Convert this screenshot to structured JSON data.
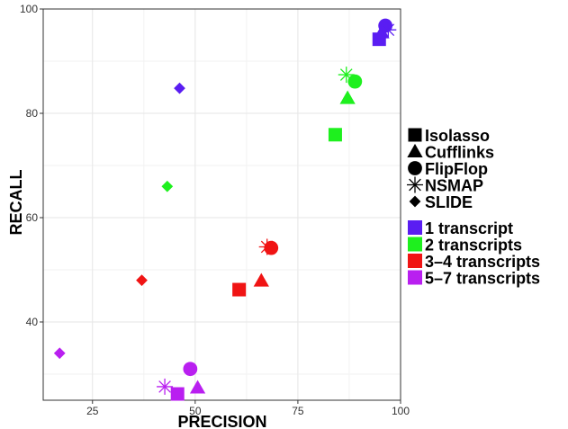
{
  "chart_data": {
    "type": "scatter",
    "xlabel": "PRECISION",
    "ylabel": "RECALL",
    "xlim": [
      13,
      100
    ],
    "ylim": [
      25,
      100
    ],
    "x_ticks": [
      25,
      50,
      75,
      100
    ],
    "y_ticks": [
      40,
      60,
      80,
      100
    ],
    "grid": true,
    "legend_position": "right",
    "shape_legend": [
      {
        "label": "Isolasso",
        "shape": "square"
      },
      {
        "label": "Cufflinks",
        "shape": "triangle"
      },
      {
        "label": "FlipFlop",
        "shape": "circle"
      },
      {
        "label": "NSMAP",
        "shape": "asterisk"
      },
      {
        "label": "SLIDE",
        "shape": "diamond"
      }
    ],
    "color_legend": [
      {
        "label": "1 transcript",
        "color": "#5a1df2"
      },
      {
        "label": "2 transcripts",
        "color": "#1ef01e"
      },
      {
        "label": "3–4 transcripts",
        "color": "#f01414"
      },
      {
        "label": "5–7 transcripts",
        "color": "#b91ff0"
      }
    ],
    "points": [
      {
        "method": "Isolasso",
        "group": "1 transcript",
        "x": 94.8,
        "y": 94.2
      },
      {
        "method": "Cufflinks",
        "group": "1 transcript",
        "x": 95.4,
        "y": 95.5
      },
      {
        "method": "FlipFlop",
        "group": "1 transcript",
        "x": 96.3,
        "y": 96.8
      },
      {
        "method": "NSMAP",
        "group": "1 transcript",
        "x": 97.0,
        "y": 96.0
      },
      {
        "method": "SLIDE",
        "group": "1 transcript",
        "x": 46.2,
        "y": 84.8
      },
      {
        "method": "Isolasso",
        "group": "2 transcripts",
        "x": 84.1,
        "y": 75.9
      },
      {
        "method": "Cufflinks",
        "group": "2 transcripts",
        "x": 87.1,
        "y": 82.9
      },
      {
        "method": "FlipFlop",
        "group": "2 transcripts",
        "x": 88.9,
        "y": 86.1
      },
      {
        "method": "NSMAP",
        "group": "2 transcripts",
        "x": 86.8,
        "y": 87.4
      },
      {
        "method": "SLIDE",
        "group": "2 transcripts",
        "x": 43.2,
        "y": 66.0
      },
      {
        "method": "Isolasso",
        "group": "3–4 transcripts",
        "x": 60.7,
        "y": 46.2
      },
      {
        "method": "Cufflinks",
        "group": "3–4 transcripts",
        "x": 66.1,
        "y": 47.9
      },
      {
        "method": "FlipFlop",
        "group": "3–4 transcripts",
        "x": 68.5,
        "y": 54.2
      },
      {
        "method": "NSMAP",
        "group": "3–4 transcripts",
        "x": 67.5,
        "y": 54.4
      },
      {
        "method": "SLIDE",
        "group": "3–4 transcripts",
        "x": 37.0,
        "y": 48.0
      },
      {
        "method": "Isolasso",
        "group": "5–7 transcripts",
        "x": 45.7,
        "y": 26.2
      },
      {
        "method": "Cufflinks",
        "group": "5–7 transcripts",
        "x": 50.6,
        "y": 27.4
      },
      {
        "method": "FlipFlop",
        "group": "5–7 transcripts",
        "x": 48.8,
        "y": 31.0
      },
      {
        "method": "NSMAP",
        "group": "5–7 transcripts",
        "x": 42.6,
        "y": 27.6
      },
      {
        "method": "SLIDE",
        "group": "5–7 transcripts",
        "x": 17.0,
        "y": 34.0
      }
    ]
  }
}
